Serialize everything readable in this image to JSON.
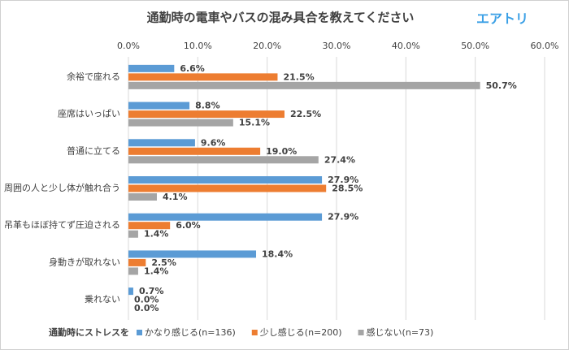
{
  "chart_data": {
    "type": "hbar",
    "title": "通勤時の電車やバスの混み具合を教えてください",
    "logo": "エアトリ",
    "legend_title": "通勤時にストレスを",
    "categories": [
      "余裕で座れる",
      "座席はいっぱい",
      "普通に立てる",
      "周囲の人と少し体が触れ合う",
      "吊革もほぼ持てず圧迫される",
      "身動きが取れない",
      "乗れない"
    ],
    "series": [
      {
        "name": "かなり感じる(n=136)",
        "color": "#5b9bd5",
        "values": [
          6.6,
          8.8,
          9.6,
          27.9,
          27.9,
          18.4,
          0.7
        ],
        "value_labels": [
          "6.6%",
          "8.8%",
          "9.6%",
          "27.9%",
          "27.9%",
          "18.4%",
          "0.7%"
        ]
      },
      {
        "name": "少し感じる(n=200)",
        "color": "#ed7d31",
        "values": [
          21.5,
          22.5,
          19.0,
          28.5,
          6.0,
          2.5,
          0.0
        ],
        "value_labels": [
          "21.5%",
          "22.5%",
          "19.0%",
          "28.5%",
          "6.0%",
          "2.5%",
          "0.0%"
        ]
      },
      {
        "name": "感じない(n=73)",
        "color": "#a5a5a5",
        "values": [
          50.7,
          15.1,
          27.4,
          4.1,
          1.4,
          1.4,
          0.0
        ],
        "value_labels": [
          "50.7%",
          "15.1%",
          "27.4%",
          "4.1%",
          "1.4%",
          "1.4%",
          "0.0%"
        ]
      }
    ],
    "xlim": [
      0,
      60
    ],
    "xticks": [
      {
        "value": 0,
        "label": "0.0%"
      },
      {
        "value": 10,
        "label": "10.0%"
      },
      {
        "value": 20,
        "label": "20.0%"
      },
      {
        "value": 30,
        "label": "30.0%"
      },
      {
        "value": 40,
        "label": "40.0%"
      },
      {
        "value": 50,
        "label": "50.0%"
      },
      {
        "value": 60,
        "label": "60.0%"
      }
    ],
    "grid": true
  }
}
